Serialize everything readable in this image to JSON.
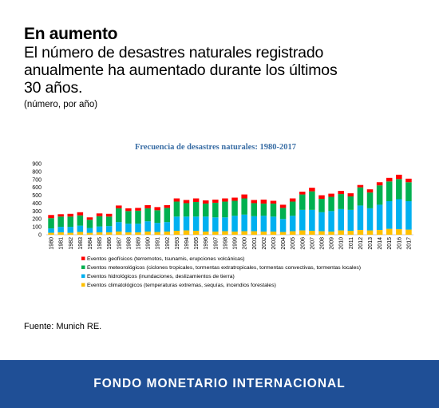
{
  "header": {
    "title": "En aumento",
    "subtitle_lines": [
      "El número de desastres naturales registrado",
      "anualmente ha aumentado durante los últimos",
      "30 años."
    ],
    "unit": "(número, por año)"
  },
  "chart_data": {
    "type": "bar",
    "stacked": true,
    "title": "Frecuencia de desastres naturales: 1980-2017",
    "xlabel": "",
    "ylabel": "",
    "ylim": [
      0,
      900
    ],
    "yticks": [
      0,
      100,
      200,
      300,
      400,
      500,
      600,
      700,
      800,
      900
    ],
    "grid": false,
    "legend_position": "bottom",
    "categories": [
      "1980",
      "1981",
      "1982",
      "1983",
      "1984",
      "1985",
      "1986",
      "1987",
      "1988",
      "1989",
      "1990",
      "1991",
      "1992",
      "1993",
      "1994",
      "1995",
      "1996",
      "1997",
      "1998",
      "1999",
      "2000",
      "2001",
      "2002",
      "2003",
      "2004",
      "2005",
      "2006",
      "2007",
      "2008",
      "2009",
      "2010",
      "2011",
      "2012",
      "2013",
      "2014",
      "2015",
      "2016",
      "2017"
    ],
    "series": [
      {
        "name": "Eventos climatológicos (temperaturas extremas, sequías, incendios forestales)",
        "color": "#ffc000",
        "values": [
          25,
          30,
          25,
          35,
          25,
          30,
          30,
          40,
          30,
          30,
          40,
          35,
          40,
          50,
          55,
          50,
          40,
          40,
          45,
          40,
          45,
          45,
          40,
          40,
          35,
          45,
          55,
          50,
          45,
          40,
          55,
          50,
          60,
          55,
          60,
          75,
          70,
          65
        ]
      },
      {
        "name": "Eventos hidrológicos (inundaciones, deslizamientos de tierra)",
        "color": "#00b0f0",
        "values": [
          55,
          70,
          75,
          80,
          60,
          75,
          80,
          120,
          110,
          110,
          130,
          115,
          120,
          180,
          175,
          180,
          190,
          180,
          175,
          200,
          210,
          190,
          200,
          190,
          165,
          195,
          260,
          265,
          240,
          260,
          270,
          265,
          310,
          280,
          320,
          350,
          380,
          360
        ]
      },
      {
        "name": "Eventos meteorológicos (ciclones tropicales, tormentas extratropicales, tormentas convectivas, tormentas locales)",
        "color": "#00b050",
        "values": [
          130,
          130,
          130,
          130,
          105,
          130,
          120,
          175,
          160,
          165,
          165,
          160,
          180,
          190,
          170,
          185,
          165,
          185,
          200,
          190,
          205,
          165,
          155,
          165,
          140,
          180,
          195,
          235,
          170,
          180,
          190,
          170,
          230,
          200,
          245,
          250,
          255,
          240
        ]
      },
      {
        "name": "Eventos geofísicos (terremotos, tsunamis, erupciones volcánicas)",
        "color": "#ff0000",
        "values": [
          40,
          30,
          35,
          40,
          30,
          35,
          35,
          35,
          35,
          35,
          40,
          40,
          35,
          40,
          40,
          45,
          40,
          40,
          40,
          40,
          50,
          40,
          50,
          35,
          40,
          40,
          35,
          45,
          45,
          40,
          40,
          40,
          30,
          40,
          40,
          45,
          55,
          45
        ]
      }
    ]
  },
  "source": "Fuente: Munich RE.",
  "footer": {
    "label": "FONDO MONETARIO INTERNACIONAL",
    "background": "#1f4f96"
  }
}
